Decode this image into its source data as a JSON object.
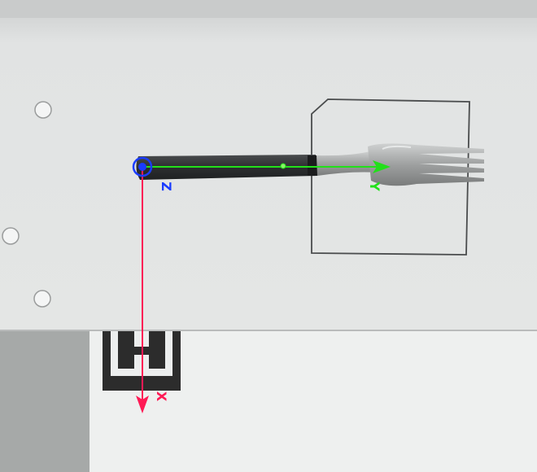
{
  "scene": {
    "subject": "fork-icon",
    "axes": {
      "x": {
        "label": "X",
        "color": "#ff1a55"
      },
      "y": {
        "label": "Y",
        "color": "#22e01a"
      },
      "z": {
        "label": "Z",
        "color": "#1a3cff"
      }
    },
    "colors": {
      "upper_panel": "#e3e5e4",
      "lower_panel": "#eceeee",
      "left_block": "#a7aaa9",
      "outline": "#3e4041",
      "fork_handle": "#2f3133",
      "fork_metal": "#a9abaa",
      "marker": "#2a2a2a"
    }
  }
}
